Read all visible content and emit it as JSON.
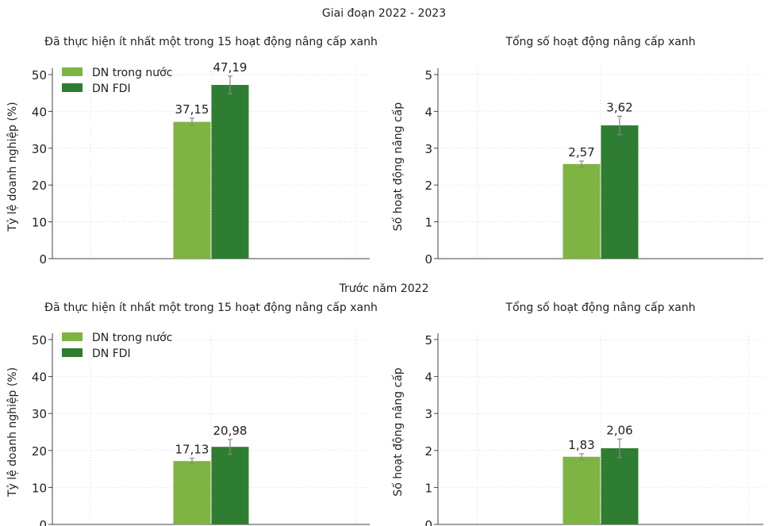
{
  "sections": [
    {
      "title": "Giai đoạn 2022 - 2023"
    },
    {
      "title": "Trước năm 2022"
    }
  ],
  "colors": {
    "domestic": "#7db443",
    "fdi": "#2e7d32",
    "error": "#888888",
    "grid": "#d9d9d9",
    "axis": "#444444"
  },
  "chart_data": [
    {
      "type": "bar",
      "title": "Đã thực hiện ít nhất một trong 15 hoạt động nâng cấp xanh",
      "ylabel": "Tỷ lệ doanh nghiệp (%)",
      "ylim": [
        0,
        50
      ],
      "yticks": [
        0,
        10,
        20,
        30,
        40,
        50
      ],
      "legend": "top-left",
      "series": [
        {
          "name": "DN trong nước",
          "value": 37.15,
          "label": "37,15",
          "err": 1.0
        },
        {
          "name": "DN FDI",
          "value": 47.19,
          "label": "47,19",
          "err": 2.4
        }
      ]
    },
    {
      "type": "bar",
      "title": "Tổng số hoạt động nâng cấp xanh",
      "ylabel": "Số hoạt động nâng cấp",
      "ylim": [
        0,
        5
      ],
      "yticks": [
        0,
        1,
        2,
        3,
        4,
        5
      ],
      "series": [
        {
          "name": "DN trong nước",
          "value": 2.57,
          "label": "2,57",
          "err": 0.08
        },
        {
          "name": "DN FDI",
          "value": 3.62,
          "label": "3,62",
          "err": 0.25
        }
      ]
    },
    {
      "type": "bar",
      "title": "Đã thực hiện ít nhất một trong 15 hoạt động nâng cấp xanh",
      "ylabel": "Tỷ lệ doanh nghiệp (%)",
      "ylim": [
        0,
        50
      ],
      "yticks": [
        0,
        10,
        20,
        30,
        40,
        50
      ],
      "legend": "top-left",
      "series": [
        {
          "name": "DN trong nước",
          "value": 17.13,
          "label": "17,13",
          "err": 0.8
        },
        {
          "name": "DN FDI",
          "value": 20.98,
          "label": "20,98",
          "err": 2.0
        }
      ]
    },
    {
      "type": "bar",
      "title": "Tổng số hoạt động nâng cấp xanh",
      "ylabel": "Số hoạt động nâng cấp",
      "ylim": [
        0,
        5
      ],
      "yticks": [
        0,
        1,
        2,
        3,
        4,
        5
      ],
      "series": [
        {
          "name": "DN trong nước",
          "value": 1.83,
          "label": "1,83",
          "err": 0.08
        },
        {
          "name": "DN FDI",
          "value": 2.06,
          "label": "2,06",
          "err": 0.25
        }
      ]
    }
  ]
}
